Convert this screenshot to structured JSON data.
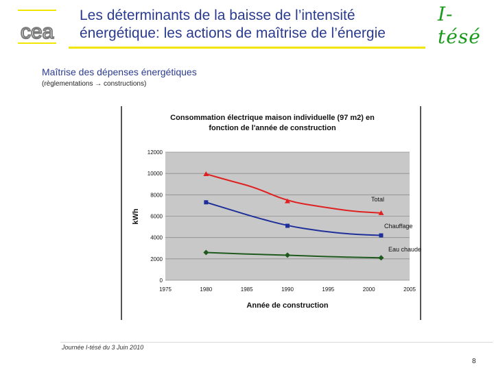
{
  "header": {
    "title_line1": "Les déterminants de la baisse de l’intensité",
    "title_line2": "énergétique: les actions de maîtrise de l’énergie",
    "brand": "I-tésé",
    "logo_text": "cea"
  },
  "content": {
    "subtitle": "Maîtrise des dépenses énergétiques",
    "note": "(règlementations → constructions)"
  },
  "footer": {
    "text": "Journée I-tésé du 3 Juin 2010",
    "page": "8"
  },
  "colors": {
    "title": "#2a3b8f",
    "rule": "#f2e600",
    "brand": "#1a9a1a",
    "total": "#e02020",
    "chauffage": "#1f2f9a",
    "eau_chaude": "#1e5a1e",
    "plot_bg": "#c8c8c8"
  },
  "chart_data": {
    "type": "line",
    "title_line1": "Consommation électrique maison individuelle (97 m2) en",
    "title_line2": "fonction de l'année de construction",
    "xlabel": "Année de construction",
    "ylabel": "kWh",
    "xlim": [
      1975,
      2005
    ],
    "ylim": [
      0,
      12000
    ],
    "x_ticks": [
      "1975",
      "1980",
      "1985",
      "1990",
      "1995",
      "2000",
      "2005"
    ],
    "y_ticks": [
      "0",
      "2000",
      "4000",
      "6000",
      "8000",
      "10000",
      "12000"
    ],
    "grid": true,
    "series": [
      {
        "name": "Total",
        "color_key": "total",
        "marker": "triangle",
        "markers": [
          [
            1980,
            9950
          ],
          [
            1990,
            7400
          ],
          [
            2001.5,
            6300
          ]
        ],
        "curve": [
          [
            1980,
            9950
          ],
          [
            1983,
            9300
          ],
          [
            1986,
            8700
          ],
          [
            1990,
            7400
          ],
          [
            1994,
            6900
          ],
          [
            1998,
            6450
          ],
          [
            2001.5,
            6300
          ]
        ]
      },
      {
        "name": "Chauffage",
        "color_key": "chauffage",
        "marker": "square",
        "markers": [
          [
            1980,
            7300
          ],
          [
            1990,
            5100
          ],
          [
            2001.5,
            4200
          ]
        ],
        "curve": [
          [
            1980,
            7300
          ],
          [
            1983,
            6600
          ],
          [
            1986,
            5900
          ],
          [
            1990,
            5100
          ],
          [
            1994,
            4600
          ],
          [
            1998,
            4300
          ],
          [
            2001.5,
            4200
          ]
        ]
      },
      {
        "name": "Eau chaude",
        "color_key": "eau_chaude",
        "marker": "diamond",
        "markers": [
          [
            1980,
            2600
          ],
          [
            1990,
            2350
          ],
          [
            2001.5,
            2100
          ]
        ],
        "curve": [
          [
            1980,
            2600
          ],
          [
            1985,
            2450
          ],
          [
            1990,
            2350
          ],
          [
            1995,
            2200
          ],
          [
            2001.5,
            2100
          ]
        ]
      }
    ]
  }
}
